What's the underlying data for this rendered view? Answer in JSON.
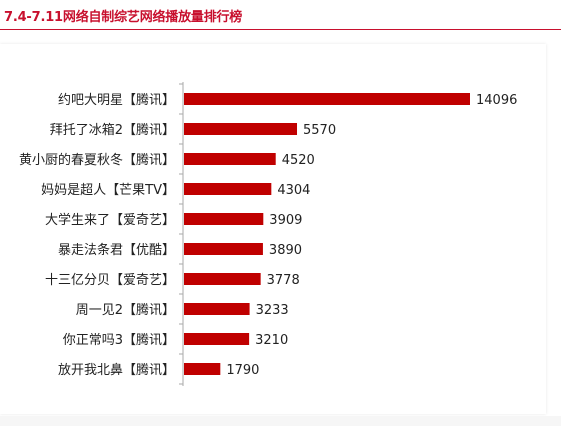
{
  "header": {
    "title": "7.4-7.11网络自制综艺网络播放量排行榜"
  },
  "colors": {
    "accent": "#c8102e",
    "bar": "#c00000",
    "axis": "#aaaaaa",
    "text": "#222222"
  },
  "chart_data": {
    "type": "bar",
    "orientation": "horizontal",
    "title": "7.4-7.11网络自制综艺网络播放量排行榜",
    "categories": [
      "约吧大明星【腾讯】",
      "拜托了冰箱2【腾讯】",
      "黄小厨的春夏秋冬【腾讯】",
      "妈妈是超人【芒果TV】",
      "大学生来了【爱奇艺】",
      "暴走法条君【优酷】",
      "十三亿分贝【爱奇艺】",
      "周一见2【腾讯】",
      "你正常吗3【腾讯】",
      "放开我北鼻【腾讯】"
    ],
    "values": [
      14096,
      5570,
      4520,
      4304,
      3909,
      3890,
      3778,
      3233,
      3210,
      1790
    ],
    "xlim": [
      0,
      14096
    ],
    "grid": false,
    "legend": "none"
  }
}
